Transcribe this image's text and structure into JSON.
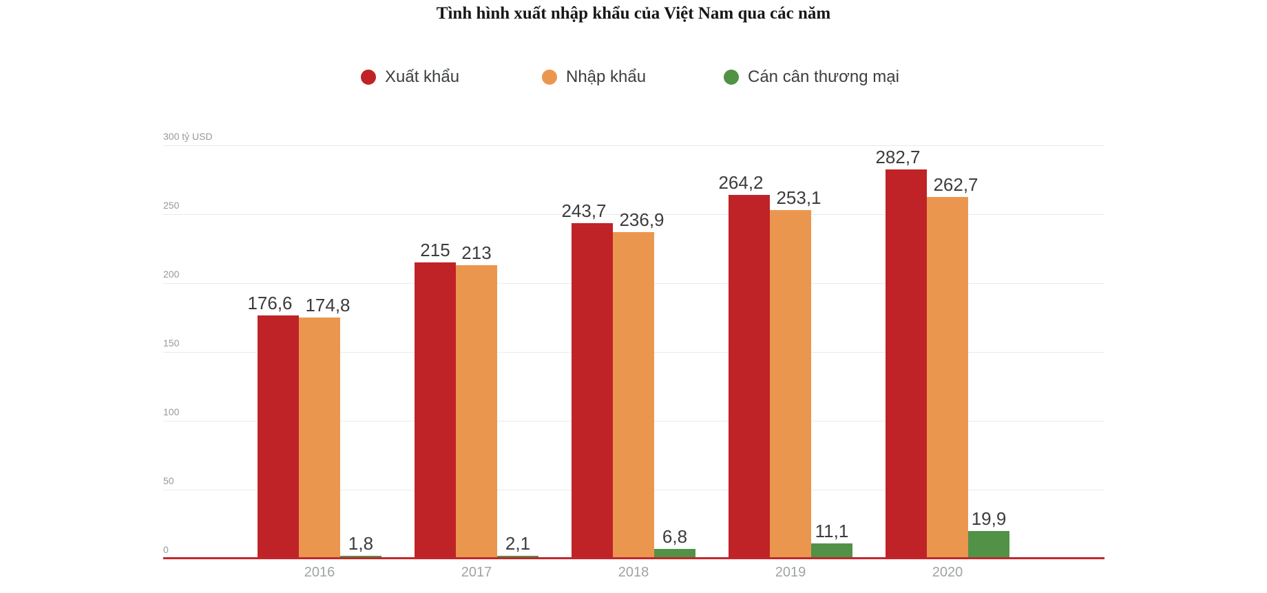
{
  "title": "Tình hình xuất nhập khẩu của Việt Nam qua các năm",
  "legend": [
    {
      "label": "Xuất khẩu",
      "color": "#bf2327"
    },
    {
      "label": "Nhập khẩu",
      "color": "#eb964f"
    },
    {
      "label": "Cán cân thương mại",
      "color": "#519247"
    }
  ],
  "chart_data": {
    "type": "bar",
    "title": "Tình hình xuất nhập khẩu của Việt Nam qua các năm",
    "categories": [
      "2016",
      "2017",
      "2018",
      "2019",
      "2020"
    ],
    "series": [
      {
        "name": "Xuất khẩu",
        "color": "#bf2327",
        "values": [
          176.6,
          215,
          243.7,
          264.2,
          282.7
        ],
        "labels": [
          "176,6",
          "215",
          "243,7",
          "264,2",
          "282,7"
        ]
      },
      {
        "name": "Nhập khẩu",
        "color": "#eb964f",
        "values": [
          174.8,
          213,
          236.9,
          253.1,
          262.7
        ],
        "labels": [
          "174,8",
          "213",
          "236,9",
          "253,1",
          "262,7"
        ]
      },
      {
        "name": "Cán cân thương mại",
        "color": "#519247",
        "values": [
          1.8,
          2.1,
          6.8,
          11.1,
          19.9
        ],
        "labels": [
          "1,8",
          "2,1",
          "6,8",
          "11,1",
          "19,9"
        ]
      }
    ],
    "y_ticks": [
      {
        "value": 0,
        "label": "0"
      },
      {
        "value": 50,
        "label": "50"
      },
      {
        "value": 100,
        "label": "100"
      },
      {
        "value": 150,
        "label": "150"
      },
      {
        "value": 200,
        "label": "200"
      },
      {
        "value": 250,
        "label": "250"
      },
      {
        "value": 300,
        "label": "300 tỷ USD"
      }
    ],
    "ylim": [
      0,
      300
    ],
    "grid": true,
    "legend_position": "top",
    "axis_color": "#c1272d",
    "grid_color": "#e8ebeb",
    "tick_color": "#95989a",
    "value_label_color": "#3c3c3c"
  }
}
